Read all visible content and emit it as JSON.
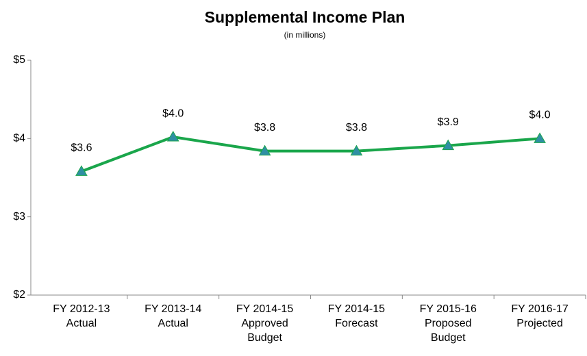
{
  "chart_data": {
    "type": "line",
    "title": "Supplemental Income Plan",
    "subtitle": "(in millions)",
    "categories": [
      "FY 2012-13\nActual",
      "FY 2013-14\nActual",
      "FY 2014-15\nApproved\nBudget",
      "FY 2014-15\nForecast",
      "FY 2015-16\nProposed\nBudget",
      "FY 2016-17\nProjected"
    ],
    "series": [
      {
        "name": "Supplemental Income",
        "color": "#1aa64b",
        "marker_color": "#2f8fa3",
        "values": [
          3.58,
          4.02,
          3.84,
          3.84,
          3.91,
          4.0
        ],
        "value_labels": [
          "$3.6",
          "$4.0",
          "$3.8",
          "$3.8",
          "$3.9",
          "$4.0"
        ]
      }
    ],
    "ylim": [
      2,
      5
    ],
    "yticks": [
      {
        "value": 2,
        "label": "$2"
      },
      {
        "value": 3,
        "label": "$3"
      },
      {
        "value": 4,
        "label": "$4"
      },
      {
        "value": 5,
        "label": "$5"
      }
    ],
    "grid": false
  }
}
